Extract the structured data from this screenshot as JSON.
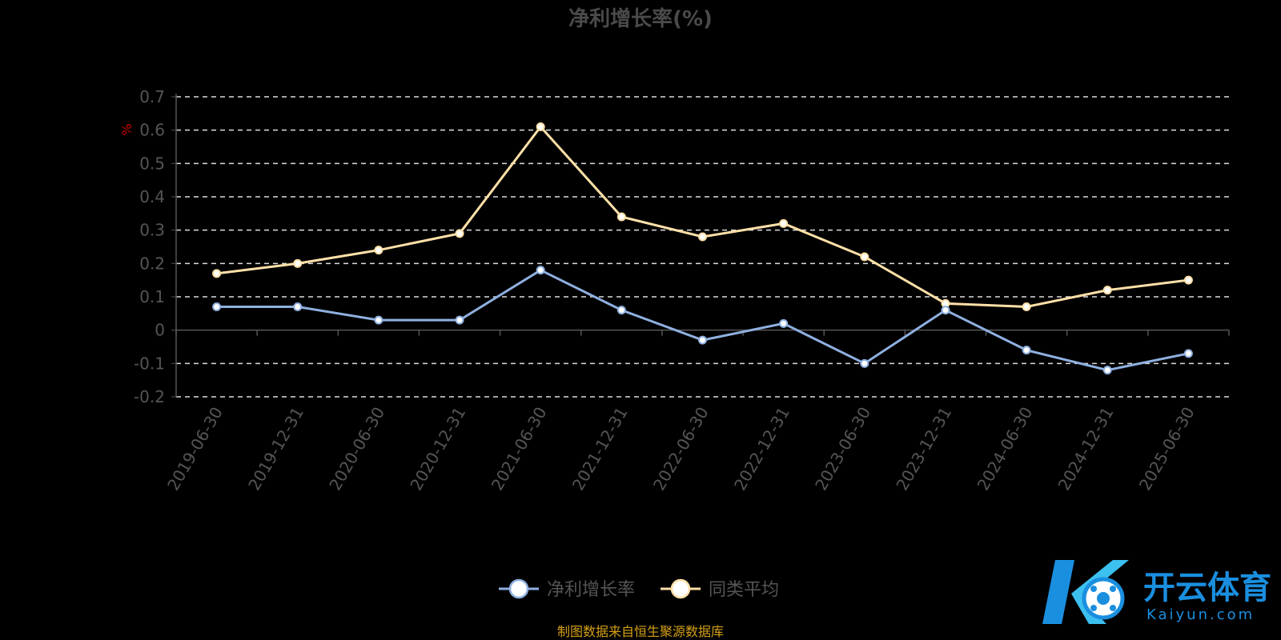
{
  "chart_data": {
    "type": "line",
    "title": "净利增长率(%)",
    "ylabel": "%",
    "ylim": [
      -0.2,
      0.7
    ],
    "yticks": [
      -0.2,
      -0.1,
      0,
      0.1,
      0.2,
      0.3,
      0.4,
      0.5,
      0.6,
      0.7
    ],
    "grid": true,
    "legend_position": "bottom-center",
    "categories": [
      "2019-06-30",
      "2019-12-31",
      "2020-06-30",
      "2020-12-31",
      "2021-06-30",
      "2021-12-31",
      "2022-06-30",
      "2022-12-31",
      "2023-06-30",
      "2023-12-31",
      "2024-06-30",
      "2024-12-31",
      "2025-06-30"
    ],
    "series": [
      {
        "name": "净利增长率",
        "color": "#8fb0e0",
        "values": [
          0.07,
          0.07,
          0.03,
          0.03,
          0.18,
          0.06,
          -0.03,
          0.02,
          -0.1,
          0.06,
          -0.06,
          -0.12,
          -0.07
        ]
      },
      {
        "name": "同类平均",
        "color": "#ffe0a8",
        "values": [
          0.17,
          0.2,
          0.24,
          0.29,
          0.61,
          0.34,
          0.28,
          0.32,
          0.22,
          0.08,
          0.07,
          0.12,
          0.15
        ]
      }
    ]
  },
  "source_note": "制图数据来自恒生聚源数据库",
  "watermark": {
    "brand": "开云体育",
    "domain": "Kaiyun.com",
    "color": "#1a8fe0"
  }
}
